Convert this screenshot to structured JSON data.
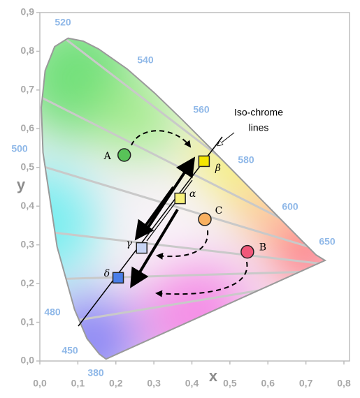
{
  "chart_data": {
    "type": "scatter",
    "xlabel": "x",
    "ylabel": "y",
    "xlim": [
      0,
      0.8
    ],
    "ylim": [
      0,
      0.9
    ],
    "xticks": [
      {
        "value": 0,
        "label": "0,0"
      },
      {
        "value": 0.1,
        "label": "0,1"
      },
      {
        "value": 0.2,
        "label": "0,2"
      },
      {
        "value": 0.3,
        "label": "0,3"
      },
      {
        "value": 0.4,
        "label": "0,4"
      },
      {
        "value": 0.5,
        "label": "0,5"
      },
      {
        "value": 0.6,
        "label": "0,6"
      },
      {
        "value": 0.7,
        "label": "0,7"
      },
      {
        "value": 0.8,
        "label": "0,8"
      }
    ],
    "yticks": [
      {
        "value": 0,
        "label": "0,0"
      },
      {
        "value": 0.1,
        "label": "0,1"
      },
      {
        "value": 0.2,
        "label": "0,2"
      },
      {
        "value": 0.3,
        "label": "0,3"
      },
      {
        "value": 0.4,
        "label": "0,4"
      },
      {
        "value": 0.5,
        "label": "0,5"
      },
      {
        "value": 0.6,
        "label": "0,6"
      },
      {
        "value": 0.7,
        "label": "0,7"
      },
      {
        "value": 0.8,
        "label": "0,8"
      },
      {
        "value": 0.9,
        "label": "0,9"
      }
    ],
    "series": [
      {
        "name": "A",
        "marker": "circle",
        "color": "#58c358",
        "x": [
          0.222
        ],
        "values": [
          0.532
        ]
      },
      {
        "name": "B",
        "marker": "circle",
        "color": "#f0587a",
        "x": [
          0.546
        ],
        "values": [
          0.282
        ]
      },
      {
        "name": "C",
        "marker": "circle",
        "color": "#f9b060",
        "x": [
          0.434
        ],
        "values": [
          0.366
        ]
      },
      {
        "name": "α",
        "marker": "square",
        "color": "#f6f07a",
        "x": [
          0.369
        ],
        "values": [
          0.42
        ]
      },
      {
        "name": "β",
        "marker": "square",
        "color": "#f4e600",
        "x": [
          0.432
        ],
        "values": [
          0.516
        ]
      },
      {
        "name": "γ",
        "marker": "square",
        "color": "#c8d4f4",
        "x": [
          0.268
        ],
        "values": [
          0.292
        ]
      },
      {
        "name": "δ",
        "marker": "square",
        "color": "#4a7ee8",
        "x": [
          0.206
        ],
        "values": [
          0.215
        ]
      }
    ],
    "wavelength_labels": [
      "520",
      "540",
      "560",
      "580",
      "600",
      "650",
      "500",
      "480",
      "450",
      "380"
    ],
    "annotation": [
      "Iso-chrome",
      "lines"
    ]
  }
}
